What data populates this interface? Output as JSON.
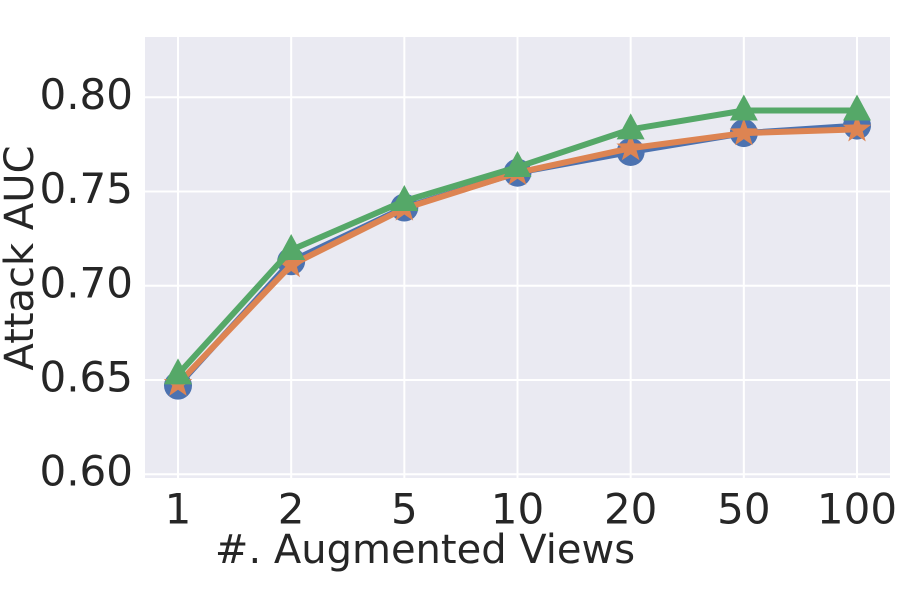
{
  "chart_data": {
    "type": "line",
    "xlabel": "#. Augmented Views",
    "ylabel": "Attack AUC",
    "categories": [
      "1",
      "2",
      "5",
      "10",
      "20",
      "50",
      "100"
    ],
    "series": [
      {
        "color": "#4c72b0",
        "marker": "circle",
        "values": [
          0.647,
          0.713,
          0.7415,
          0.76,
          0.771,
          0.781,
          0.785
        ]
      },
      {
        "color": "#dd8452",
        "marker": "star",
        "values": [
          0.648,
          0.711,
          0.741,
          0.76,
          0.773,
          0.781,
          0.783
        ]
      },
      {
        "color": "#55a868",
        "marker": "triangle",
        "values": [
          0.653,
          0.719,
          0.745,
          0.763,
          0.783,
          0.793,
          0.793
        ]
      }
    ],
    "ylim": [
      0.598,
      0.832
    ],
    "yticks": [
      {
        "value": 0.6,
        "label": "0.60"
      },
      {
        "value": 0.65,
        "label": "0.65"
      },
      {
        "value": 0.7,
        "label": "0.70"
      },
      {
        "value": 0.75,
        "label": "0.75"
      },
      {
        "value": 0.8,
        "label": "0.80"
      }
    ],
    "grid": true,
    "background": "#eaeaf2"
  }
}
